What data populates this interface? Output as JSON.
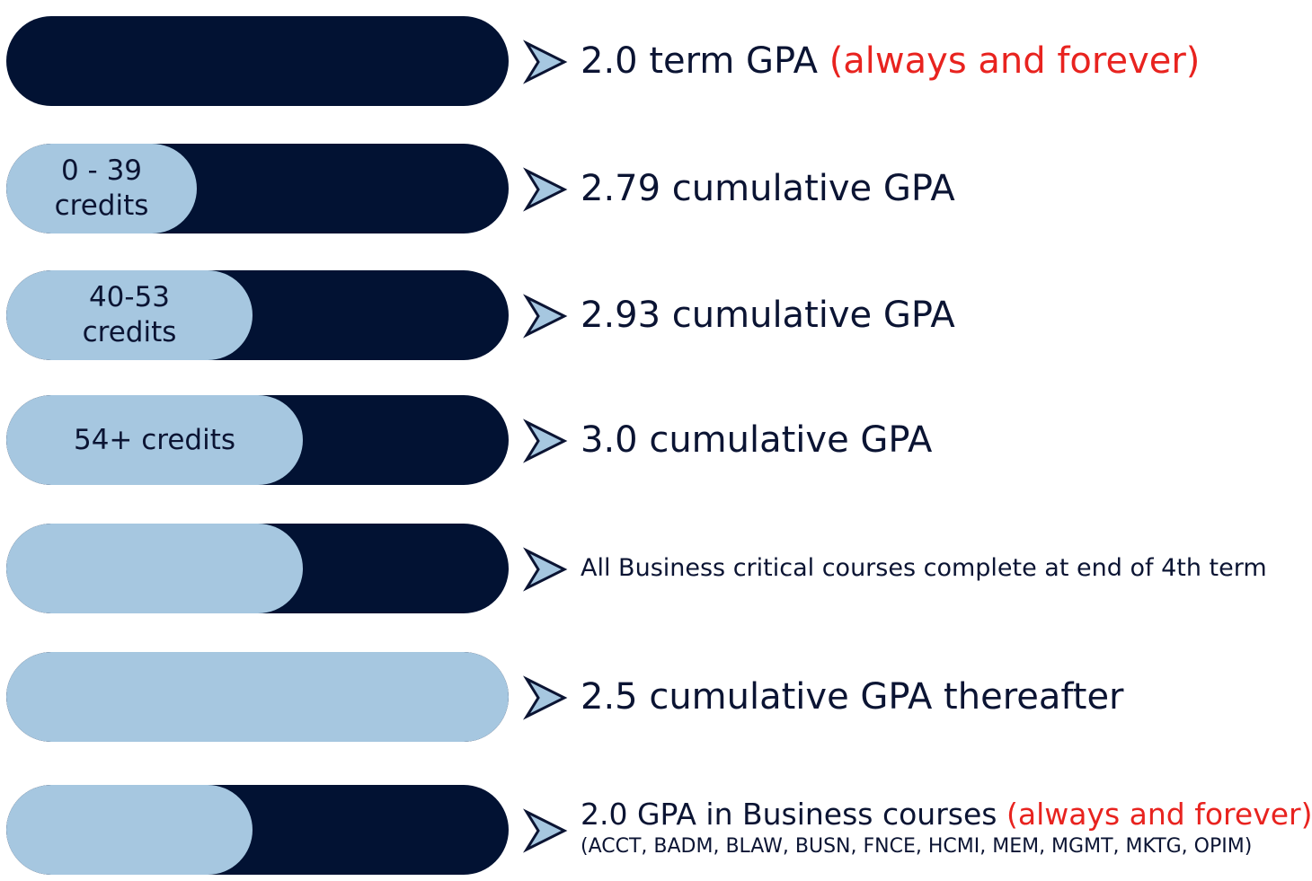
{
  "colors": {
    "dark_navy": "#021233",
    "light_blue": "#a6c7e0",
    "text_dark": "#0b1433",
    "accent_red": "#e8231f"
  },
  "rows": [
    {
      "id": "term-gpa",
      "fill_fraction": 0,
      "pill_label": "",
      "desc_main": "2.0 term GPA ",
      "desc_red": "(always and forever)",
      "desc_sub": "",
      "size": "large"
    },
    {
      "id": "credits-0-39",
      "fill_fraction": 0.38,
      "pill_label": "0 - 39\ncredits",
      "desc_main": "2.79 cumulative GPA",
      "desc_red": "",
      "desc_sub": "",
      "size": "large"
    },
    {
      "id": "credits-40-53",
      "fill_fraction": 0.49,
      "pill_label": "40-53\ncredits",
      "desc_main": "2.93 cumulative GPA",
      "desc_red": "",
      "desc_sub": "",
      "size": "large"
    },
    {
      "id": "credits-54-plus",
      "fill_fraction": 0.59,
      "pill_label": "54+ credits",
      "desc_main": "3.0 cumulative GPA",
      "desc_red": "",
      "desc_sub": "",
      "size": "large"
    },
    {
      "id": "business-critical",
      "fill_fraction": 0.59,
      "pill_label": "",
      "desc_main": "All Business critical courses complete at end of 4th term",
      "desc_red": "",
      "desc_sub": "",
      "size": "medium"
    },
    {
      "id": "gpa-thereafter",
      "fill_fraction": 1,
      "pill_label": "",
      "desc_main": "2.5 cumulative GPA thereafter",
      "desc_red": "",
      "desc_sub": "",
      "size": "large"
    },
    {
      "id": "business-courses-gpa",
      "fill_fraction": 0.49,
      "pill_label": "",
      "desc_main": "2.0 GPA in Business courses ",
      "desc_red": "(always and forever)",
      "desc_sub": "(ACCT, BADM, BLAW, BUSN, FNCE, HCMI, MEM, MGMT, MKTG, OPIM)",
      "size": "two-line"
    }
  ]
}
